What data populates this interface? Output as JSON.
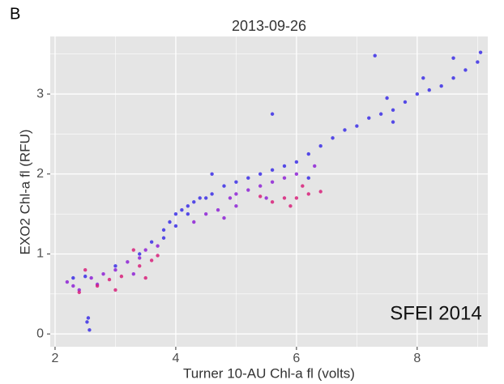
{
  "panel_label": "B",
  "chart_data": {
    "type": "scatter",
    "title": "2013-09-26",
    "x_label": "Turner 10-AU Chl-a fl (volts)",
    "y_label": "EXO2 Chl-a fl (RFU)",
    "annotation": "SFEI 2014",
    "xlim": [
      1.92,
      9.17
    ],
    "ylim": [
      -0.16,
      3.72
    ],
    "xticks": [
      2,
      4,
      6,
      8
    ],
    "yticks": [
      0,
      1,
      2,
      3
    ],
    "xminor": [
      3,
      5,
      7,
      9
    ],
    "yminor": [
      0.5,
      1.5,
      2.5,
      3.5
    ],
    "grid": true,
    "background": "#e5e5e5",
    "grid_color": "#ffffff",
    "series": [
      {
        "color": "#3b2ee6",
        "x": [
          2.3,
          2.5,
          3.0,
          3.4,
          3.6,
          3.8,
          3.9,
          4.0,
          4.1,
          4.2,
          4.3,
          4.4,
          4.5,
          4.2,
          4.0,
          3.8,
          4.6,
          4.8,
          5.0,
          5.2,
          5.4,
          5.6,
          5.8,
          6.0,
          6.2,
          6.4,
          6.6,
          6.8,
          7.0,
          7.2,
          7.4,
          7.6,
          7.8,
          8.0,
          8.2,
          8.4,
          8.6,
          8.8,
          9.0,
          9.05,
          7.3,
          7.6,
          8.1,
          5.6,
          6.2,
          4.6,
          2.55,
          2.57,
          2.53,
          8.6,
          7.5
        ],
        "values": [
          0.7,
          0.72,
          0.85,
          1.0,
          1.15,
          1.3,
          1.4,
          1.5,
          1.55,
          1.6,
          1.65,
          1.7,
          1.7,
          1.5,
          1.35,
          1.2,
          1.75,
          1.85,
          1.9,
          1.95,
          2.0,
          2.05,
          2.1,
          2.15,
          2.25,
          2.35,
          2.45,
          2.55,
          2.6,
          2.7,
          2.75,
          2.8,
          2.9,
          3.0,
          3.05,
          3.1,
          3.2,
          3.3,
          3.4,
          3.52,
          3.48,
          2.65,
          3.2,
          2.75,
          1.95,
          2.0,
          0.2,
          0.05,
          0.15,
          3.45,
          2.95
        ]
      },
      {
        "color": "#8e22d6",
        "x": [
          2.2,
          2.3,
          2.4,
          2.6,
          2.8,
          3.0,
          3.2,
          3.4,
          3.5,
          3.7,
          4.3,
          4.5,
          4.7,
          4.9,
          5.0,
          5.2,
          5.4,
          5.6,
          5.8,
          6.0,
          5.0,
          4.8,
          3.3,
          2.7,
          6.3,
          5.5
        ],
        "values": [
          0.65,
          0.6,
          0.55,
          0.7,
          0.75,
          0.8,
          0.9,
          0.95,
          1.05,
          1.1,
          1.4,
          1.5,
          1.55,
          1.7,
          1.75,
          1.8,
          1.85,
          1.9,
          1.95,
          2.0,
          1.6,
          1.45,
          0.75,
          0.62,
          2.1,
          1.7
        ]
      },
      {
        "color": "#d8207a",
        "x": [
          2.4,
          2.7,
          2.9,
          3.1,
          3.4,
          3.6,
          3.7,
          3.3,
          5.6,
          5.8,
          6.0,
          6.2,
          6.4,
          5.4,
          6.1,
          5.9,
          3.0,
          2.5,
          3.5
        ],
        "values": [
          0.52,
          0.6,
          0.68,
          0.72,
          0.85,
          0.92,
          0.98,
          1.05,
          1.65,
          1.7,
          1.7,
          1.75,
          1.78,
          1.72,
          1.85,
          1.6,
          0.55,
          0.8,
          0.7
        ]
      }
    ]
  }
}
